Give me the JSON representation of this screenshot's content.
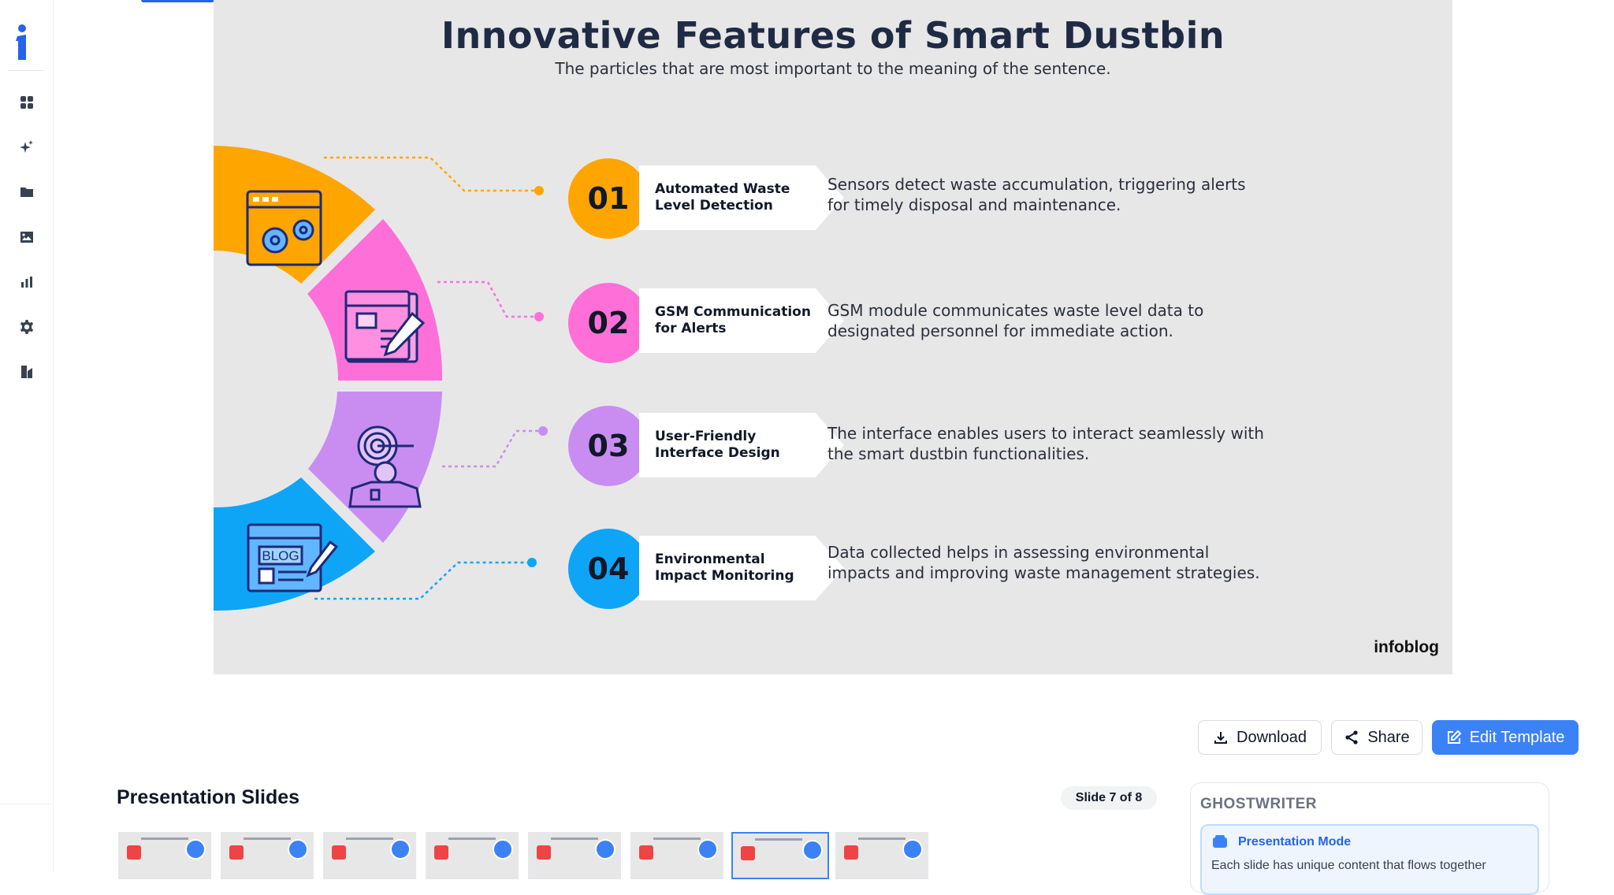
{
  "sidebar": {
    "items": [
      {
        "icon": "grid-icon",
        "label": ""
      },
      {
        "icon": "sparkles-icon",
        "label": ""
      },
      {
        "icon": "folder-icon",
        "label": ""
      },
      {
        "icon": "image-icon",
        "label": ""
      },
      {
        "icon": "bar-chart-icon",
        "label": ""
      },
      {
        "icon": "gear-icon",
        "label": ""
      },
      {
        "icon": "document-icon",
        "label": ""
      }
    ]
  },
  "slide": {
    "title": "Innovative Features of Smart Dustbin",
    "subtitle": "The particles that are most important to the meaning of the sentence.",
    "brand": "infoblog",
    "segment_colors": [
      "#ffa500",
      "#ff6fd8",
      "#c98df2",
      "#0ea5f7"
    ],
    "features": [
      {
        "number": "01",
        "title": "Automated Waste Level Detection",
        "description": "Sensors detect waste accumulation, triggering alerts for timely disposal and maintenance.",
        "color": "#ffa500",
        "icon": "gears-window-icon"
      },
      {
        "number": "02",
        "title": "GSM Communication for Alerts",
        "description": "GSM module communicates waste level data to designated personnel for immediate action.",
        "color": "#ff6fd8",
        "icon": "pencil-document-icon"
      },
      {
        "number": "03",
        "title": "User-Friendly Interface Design",
        "description": "The interface enables users to interact seamlessly with the smart dustbin functionalities.",
        "color": "#c98df2",
        "icon": "target-person-icon"
      },
      {
        "number": "04",
        "title": "Environmental Impact Monitoring",
        "description": "Data collected helps in assessing environmental impacts and improving waste management strategies.",
        "color": "#0ea5f7",
        "icon": "blog-window-icon"
      }
    ],
    "blog_label": "BLOG"
  },
  "actions": {
    "download_label": "Download",
    "share_label": "Share",
    "edit_label": "Edit Template"
  },
  "presentation": {
    "title": "Presentation Slides",
    "counter": "Slide 7 of 8",
    "current_slide": 7,
    "total_slides": 8
  },
  "ghostwriter": {
    "title": "GHOSTWRITER",
    "mode_title": "Presentation Mode",
    "mode_text": "Each slide has unique content that flows together"
  }
}
